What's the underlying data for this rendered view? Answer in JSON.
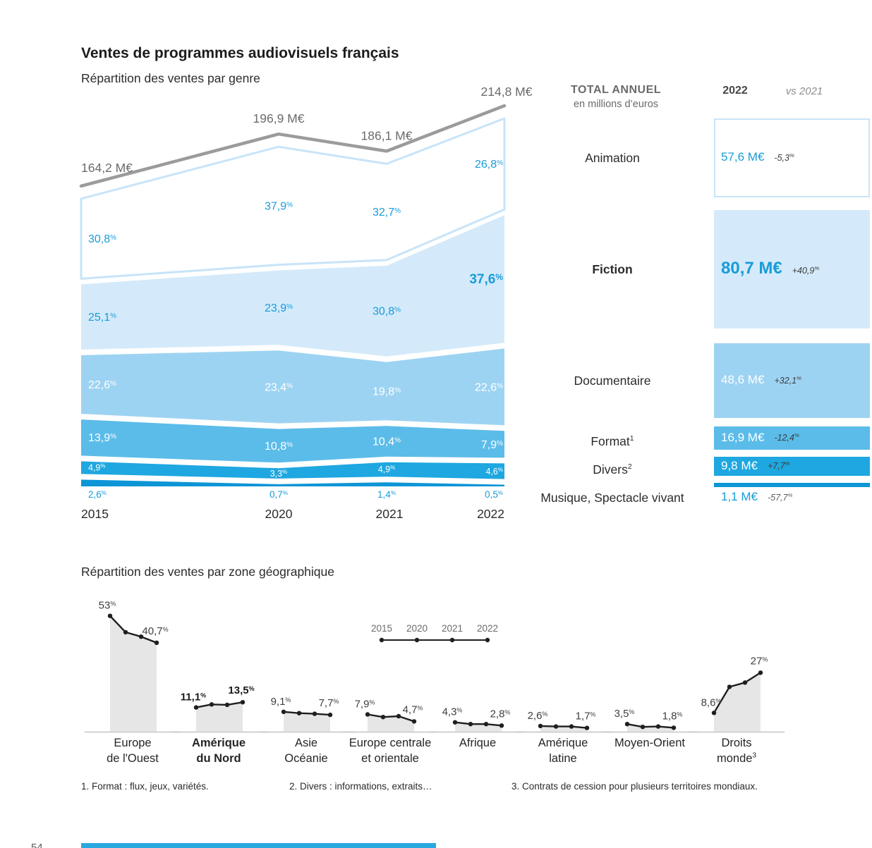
{
  "header": {
    "title": "Ventes de programmes audiovisuels français",
    "subtitle": "Répartition des ventes par genre"
  },
  "section2_title": "Répartition des ventes par zone géographique",
  "colors": {
    "accent_blue_text": "#189cd8",
    "band_animation_outline": "#c8e4f8",
    "band_fiction": "#d4eafa",
    "band_documentaire": "#9dd3f2",
    "band_format": "#5bbce9",
    "band_divers": "#1ea7e0",
    "band_musique": "#0d95d5",
    "total_line_gray": "#9b9b9b",
    "region_area_gray": "#e6e6e6",
    "footer_bar_blue": "#29a8e0"
  },
  "chart_data": [
    {
      "type": "area",
      "title": "Répartition des ventes par genre",
      "x": [
        "2015",
        "2020",
        "2021",
        "2022"
      ],
      "totals": [
        164.2,
        196.9,
        186.1,
        214.8
      ],
      "totals_labels": [
        "164,2 M€",
        "196,9 M€",
        "186,1 M€",
        "214,8 M€"
      ],
      "unit": "%",
      "series": [
        {
          "name": "Animation",
          "values": [
            30.8,
            37.9,
            32.7,
            26.8
          ],
          "labels": [
            "30,8%",
            "37,9%",
            "32,7%",
            "26,8%"
          ],
          "fill": "#ffffff",
          "outline": "#c8e4f8",
          "label_color": "#189cd8"
        },
        {
          "name": "Fiction",
          "values": [
            25.1,
            23.9,
            30.8,
            37.6
          ],
          "labels": [
            "25,1%",
            "23,9%",
            "30,8%",
            "37,6%"
          ],
          "fill": "#d4eafa",
          "label_color": "#189cd8",
          "last_bold": true
        },
        {
          "name": "Documentaire",
          "values": [
            22.6,
            23.4,
            19.8,
            22.6
          ],
          "labels": [
            "22,6%",
            "23,4%",
            "19,8%",
            "22,6%"
          ],
          "fill": "#9dd3f2",
          "label_color": "#ffffff"
        },
        {
          "name": "Format",
          "values": [
            13.9,
            10.8,
            10.4,
            7.9
          ],
          "labels": [
            "13,9%",
            "10,8%",
            "10,4%",
            "7,9%"
          ],
          "fill": "#5bbce9",
          "label_color": "#ffffff"
        },
        {
          "name": "Divers",
          "values": [
            4.9,
            3.3,
            4.9,
            4.6
          ],
          "labels": [
            "4,9%",
            "3,3%",
            "4,9%",
            "4,6%"
          ],
          "fill": "#1ea7e0",
          "label_color": "#ffffff",
          "small_label": true
        },
        {
          "name": "Musique, Spectacle vivant",
          "values": [
            2.6,
            0.7,
            1.4,
            0.5
          ],
          "labels": [
            "2,6%",
            "0,7%",
            "1,4%",
            "0,5%"
          ],
          "fill": "#0d95d5",
          "label_color": "#189cd8",
          "label_below": true
        }
      ]
    },
    {
      "type": "table",
      "header": {
        "title": "TOTAL ANNUEL",
        "subtitle": "en millions d’euros",
        "col_year": "2022",
        "col_vs": "vs 2021"
      },
      "rows": [
        {
          "genre": "Animation",
          "value": "57,6 M€",
          "value_meur": 57.6,
          "vs": "-5,3%"
        },
        {
          "genre": "Fiction",
          "value": "80,7 M€",
          "value_meur": 80.7,
          "vs": "+40,9%"
        },
        {
          "genre": "Documentaire",
          "value": "48,6 M€",
          "value_meur": 48.6,
          "vs": "+32,1%"
        },
        {
          "genre": "Format",
          "footnote": "1",
          "value": "16,9 M€",
          "value_meur": 16.9,
          "vs": "-12,4%"
        },
        {
          "genre": "Divers",
          "footnote": "2",
          "value": "9,8 M€",
          "value_meur": 9.8,
          "vs": "+7,7%"
        },
        {
          "genre": "Musique, Spectacle vivant",
          "value": "1,1 M€",
          "value_meur": 1.1,
          "vs": "-57,7%"
        }
      ]
    },
    {
      "type": "area-small-multiples",
      "title": "Répartition des ventes par zone géographique",
      "legend_years": [
        "2015",
        "2020",
        "2021",
        "2022"
      ],
      "unit": "%",
      "regions": [
        {
          "name_lines": [
            "Europe",
            "de l'Ouest"
          ],
          "first_label": "53%",
          "last_label": "40,7%",
          "values": [
            53,
            45.5,
            43.5,
            40.7
          ]
        },
        {
          "name_lines": [
            "Amérique",
            "du Nord"
          ],
          "first_label": "11,1%",
          "last_label": "13,5%",
          "values": [
            11.1,
            12.5,
            12.3,
            13.5
          ],
          "bold": true
        },
        {
          "name_lines": [
            "Asie",
            "Océanie"
          ],
          "first_label": "9,1%",
          "last_label": "7,7%",
          "values": [
            9.1,
            8.5,
            8.2,
            7.7
          ]
        },
        {
          "name_lines": [
            "Europe centrale",
            "et orientale"
          ],
          "first_label": "7,9%",
          "last_label": "4,7%",
          "values": [
            7.9,
            6.7,
            7.1,
            4.7
          ]
        },
        {
          "name_lines": [
            "Afrique"
          ],
          "first_label": "4,3%",
          "last_label": "2,8%",
          "values": [
            4.3,
            3.5,
            3.5,
            2.8
          ]
        },
        {
          "name_lines": [
            "Amérique",
            "latine"
          ],
          "first_label": "2,6%",
          "last_label": "1,7%",
          "values": [
            2.6,
            2.4,
            2.4,
            1.7
          ]
        },
        {
          "name_lines": [
            "Moyen-Orient"
          ],
          "first_label": "3,5%",
          "last_label": "1,8%",
          "values": [
            3.5,
            2.2,
            2.4,
            1.8
          ]
        },
        {
          "name_lines": [
            "Droits",
            "monde"
          ],
          "sup": "3",
          "first_label": "8,6%",
          "last_label": "27%",
          "values": [
            8.6,
            20.5,
            22.5,
            27
          ]
        }
      ]
    }
  ],
  "footnotes": [
    "1. Format : flux, jeux, variétés.",
    "2. Divers : informations, extraits…",
    "3. Contrats de cession pour plusieurs territoires mondiaux."
  ],
  "page_number": "54"
}
